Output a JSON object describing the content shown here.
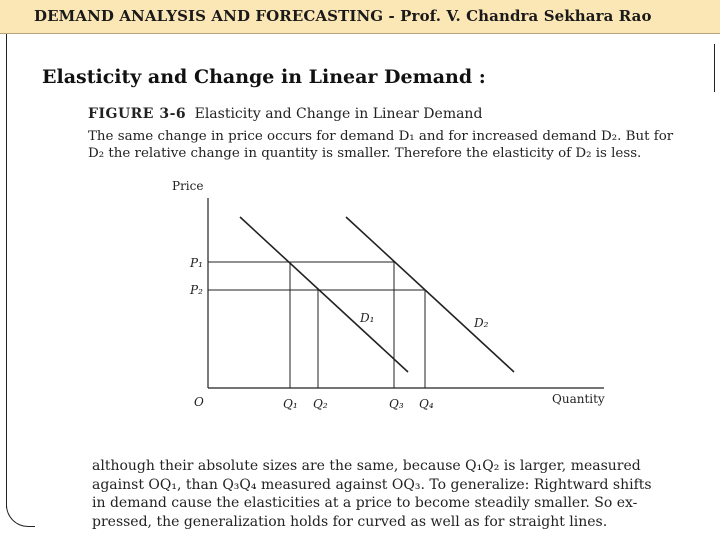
{
  "header": {
    "title": "DEMAND ANALYSIS AND FORECASTING - Prof. V. Chandra Sekhara Rao"
  },
  "slide": {
    "title": "Elasticity and Change in Linear Demand :"
  },
  "figure": {
    "number": "FIGURE 3-6",
    "title": "Elasticity and Change in Linear Demand",
    "caption_lines": [
      "The same change in price occurs for demand D₁ and for increased demand D₂. But for",
      "D₂ the relative change in quantity is smaller. Therefore the elasticity of D₂ is less."
    ]
  },
  "diagram": {
    "y_axis_label": "Price",
    "x_axis_label": "Quantity",
    "origin_label": "O",
    "price_labels": [
      "P₁",
      "P₂"
    ],
    "quantity_labels": [
      "Q₁",
      "Q₂",
      "Q₃",
      "Q₄"
    ],
    "curve_labels": [
      "D₁",
      "D₂"
    ]
  },
  "body": {
    "lines": [
      "although their absolute sizes are the same, because Q₁Q₂ is larger, measured",
      "against OQ₁, than Q₃Q₄ measured against OQ₃. To generalize: Rightward shifts",
      "in demand cause the elasticities at a price to become steadily smaller. So ex-",
      "pressed, the generalization holds for curved as well as for straight lines."
    ]
  }
}
